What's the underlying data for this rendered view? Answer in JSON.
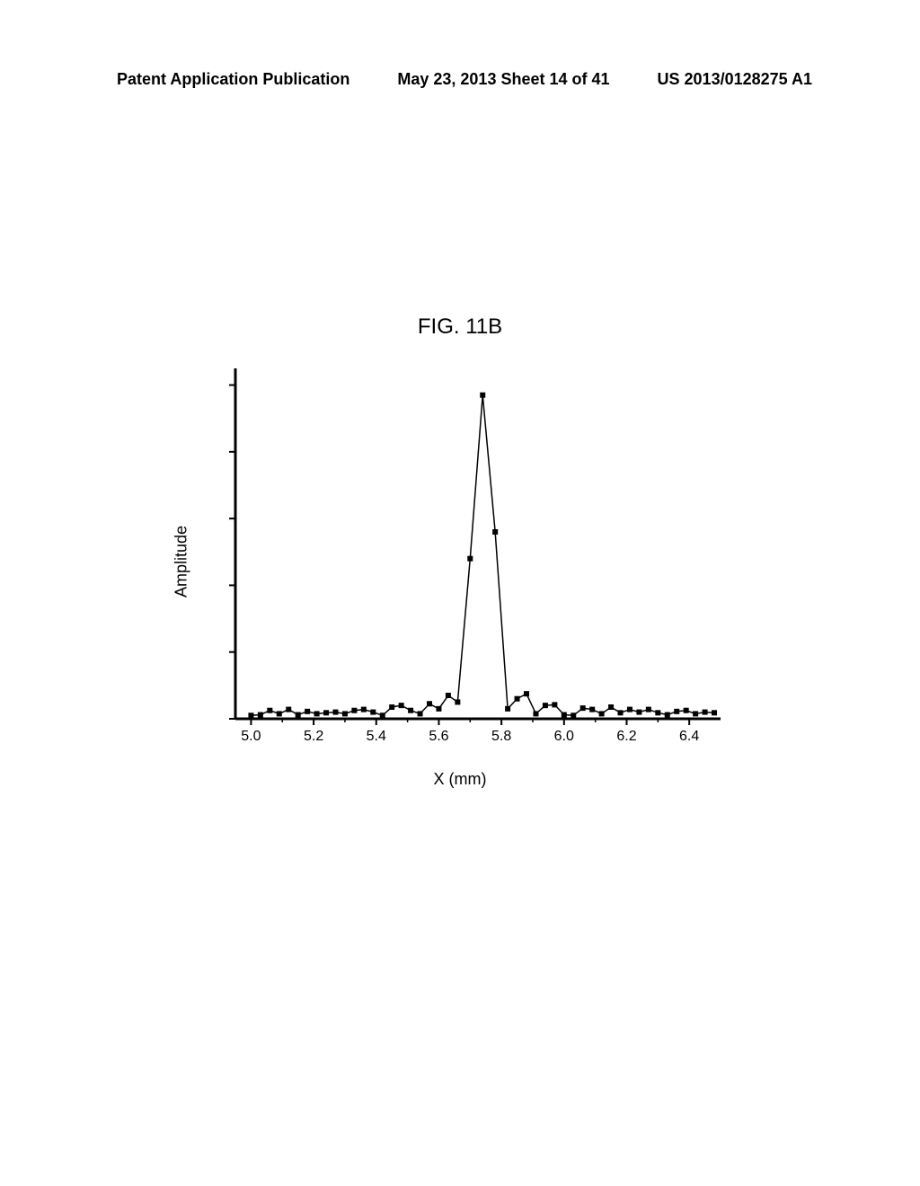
{
  "header": {
    "left": "Patent Application Publication",
    "center": "May 23, 2013  Sheet 14 of 41",
    "right": "US 2013/0128275 A1"
  },
  "figure": {
    "title": "FIG. 11B",
    "chart": {
      "type": "line",
      "xlabel": "X (mm)",
      "ylabel": "Amplitude",
      "xlim": [
        4.95,
        6.5
      ],
      "ylim": [
        0,
        1.05
      ],
      "xticks": [
        5.0,
        5.2,
        5.4,
        5.6,
        5.8,
        6.0,
        6.2,
        6.4
      ],
      "xtick_labels": [
        "5.0",
        "5.2",
        "5.4",
        "5.6",
        "5.8",
        "6.0",
        "6.2",
        "6.4"
      ],
      "yticks_major": [
        0,
        0.2,
        0.4,
        0.6,
        0.8,
        1.0
      ],
      "line_color": "#000000",
      "marker_color": "#000000",
      "marker_size": 6,
      "line_width": 1.5,
      "axis_color": "#000000",
      "axis_width": 3,
      "background_color": "#ffffff",
      "tick_fontsize": 16,
      "label_fontsize": 18,
      "data": [
        {
          "x": 5.0,
          "y": 0.01
        },
        {
          "x": 5.03,
          "y": 0.012
        },
        {
          "x": 5.06,
          "y": 0.025
        },
        {
          "x": 5.09,
          "y": 0.015
        },
        {
          "x": 5.12,
          "y": 0.028
        },
        {
          "x": 5.15,
          "y": 0.012
        },
        {
          "x": 5.18,
          "y": 0.022
        },
        {
          "x": 5.21,
          "y": 0.015
        },
        {
          "x": 5.24,
          "y": 0.018
        },
        {
          "x": 5.27,
          "y": 0.02
        },
        {
          "x": 5.3,
          "y": 0.015
        },
        {
          "x": 5.33,
          "y": 0.025
        },
        {
          "x": 5.36,
          "y": 0.028
        },
        {
          "x": 5.39,
          "y": 0.02
        },
        {
          "x": 5.42,
          "y": 0.01
        },
        {
          "x": 5.45,
          "y": 0.035
        },
        {
          "x": 5.48,
          "y": 0.04
        },
        {
          "x": 5.51,
          "y": 0.025
        },
        {
          "x": 5.54,
          "y": 0.015
        },
        {
          "x": 5.57,
          "y": 0.045
        },
        {
          "x": 5.6,
          "y": 0.03
        },
        {
          "x": 5.63,
          "y": 0.07
        },
        {
          "x": 5.66,
          "y": 0.05
        },
        {
          "x": 5.7,
          "y": 0.48
        },
        {
          "x": 5.74,
          "y": 0.97
        },
        {
          "x": 5.78,
          "y": 0.56
        },
        {
          "x": 5.82,
          "y": 0.03
        },
        {
          "x": 5.85,
          "y": 0.06
        },
        {
          "x": 5.88,
          "y": 0.075
        },
        {
          "x": 5.91,
          "y": 0.015
        },
        {
          "x": 5.94,
          "y": 0.04
        },
        {
          "x": 5.97,
          "y": 0.042
        },
        {
          "x": 6.0,
          "y": 0.012
        },
        {
          "x": 6.03,
          "y": 0.01
        },
        {
          "x": 6.06,
          "y": 0.032
        },
        {
          "x": 6.09,
          "y": 0.028
        },
        {
          "x": 6.12,
          "y": 0.015
        },
        {
          "x": 6.15,
          "y": 0.035
        },
        {
          "x": 6.18,
          "y": 0.018
        },
        {
          "x": 6.21,
          "y": 0.028
        },
        {
          "x": 6.24,
          "y": 0.02
        },
        {
          "x": 6.27,
          "y": 0.028
        },
        {
          "x": 6.3,
          "y": 0.018
        },
        {
          "x": 6.33,
          "y": 0.012
        },
        {
          "x": 6.36,
          "y": 0.022
        },
        {
          "x": 6.39,
          "y": 0.025
        },
        {
          "x": 6.42,
          "y": 0.015
        },
        {
          "x": 6.45,
          "y": 0.02
        },
        {
          "x": 6.48,
          "y": 0.018
        }
      ]
    }
  }
}
